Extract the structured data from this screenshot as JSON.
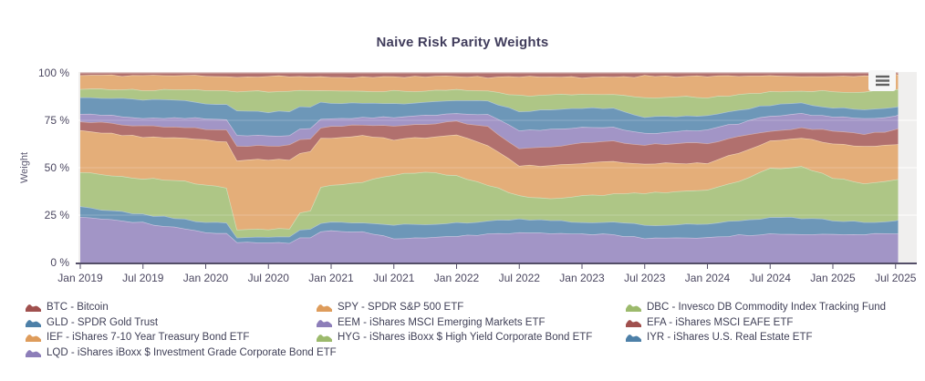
{
  "export_menu": {
    "icon": "hamburger-menu-icon"
  },
  "chart_data": {
    "type": "area",
    "stacked": true,
    "title": "Naive Risk Parity Weights",
    "xlabel": "",
    "ylabel": "Weight",
    "ylim": [
      0,
      100
    ],
    "grid": "horizontal",
    "legend_position": "bottom-left, three columns",
    "y_tick_values": [
      0,
      25,
      50,
      75,
      100
    ],
    "y_tick_labels": [
      "0 %",
      "25 %",
      "50 %",
      "75 %",
      "100 %"
    ],
    "x_tick_values": [
      2019.0,
      2019.5,
      2020.0,
      2020.5,
      2021.0,
      2021.5,
      2022.0,
      2022.5,
      2023.0,
      2023.5,
      2024.0,
      2024.5,
      2025.0,
      2025.5
    ],
    "x_tick_labels": [
      "Jan 2019",
      "Jul 2019",
      "Jan 2020",
      "Jul 2020",
      "Jan 2021",
      "Jul 2021",
      "Jan 2022",
      "Jul 2022",
      "Jan 2023",
      "Jul 2023",
      "Jan 2024",
      "Jul 2024",
      "Jan 2025",
      "Jul 2025"
    ],
    "x_unit": "decimal years (monthly weights)",
    "x": [
      2019.0,
      2019.25,
      2019.5,
      2019.75,
      2020.0,
      2020.17,
      2020.25,
      2020.5,
      2020.67,
      2020.75,
      2020.83,
      2020.92,
      2021.0,
      2021.25,
      2021.5,
      2021.75,
      2022.0,
      2022.25,
      2022.5,
      2022.75,
      2023.0,
      2023.25,
      2023.5,
      2023.75,
      2024.0,
      2024.25,
      2024.5,
      2024.75,
      2025.0,
      2025.25,
      2025.4,
      2025.52
    ],
    "series_note": "weights in percent, listed bottom-of-stack first; values estimated from plot",
    "series": [
      {
        "id": "LQD",
        "label": "LQD - iShares iBoxx $ Investment Grade Corporate Bond ETF",
        "color": "#8d7eb9",
        "values": [
          24.5,
          23.0,
          21.0,
          18.5,
          15.9,
          15.5,
          10.5,
          10.3,
          10.5,
          13.0,
          13.2,
          16.5,
          17.0,
          16.0,
          12.8,
          13.0,
          14.0,
          15.0,
          15.9,
          15.5,
          15.1,
          15.0,
          12.7,
          13.0,
          13.5,
          14.5,
          15.1,
          15.0,
          15.1,
          15.0,
          15.9,
          15.1
        ]
      },
      {
        "id": "IYR",
        "label": "IYR - iShares U.S. Real Estate ETF",
        "color": "#4d80a8",
        "values": [
          4.8,
          4.5,
          4.5,
          5.0,
          5.6,
          5.5,
          3.0,
          3.2,
          3.5,
          4.0,
          4.0,
          4.5,
          4.5,
          5.0,
          7.2,
          7.0,
          7.0,
          7.0,
          7.2,
          7.0,
          6.4,
          6.5,
          7.2,
          7.0,
          7.2,
          7.5,
          8.8,
          8.5,
          7.2,
          6.5,
          5.6,
          7.2
        ]
      },
      {
        "id": "HYG",
        "label": "HYG - iShares iBoxx $ High Yield Corporate Bond ETF",
        "color": "#9cba6c",
        "values": [
          18.7,
          18.5,
          19.0,
          20.0,
          19.5,
          18.0,
          4.0,
          4.0,
          4.0,
          9.0,
          9.8,
          19.0,
          19.0,
          21.5,
          26.5,
          28.0,
          25.0,
          19.0,
          12.0,
          11.5,
          13.6,
          14.5,
          16.8,
          17.5,
          17.6,
          21.0,
          25.6,
          27.5,
          22.4,
          20.5,
          21.6,
          21.6
        ]
      },
      {
        "id": "IEF",
        "label": "IEF - iShares 7-10 Year Treasury Bond ETF",
        "color": "#de9c5b",
        "values": [
          21.7,
          22.0,
          22.0,
          22.5,
          23.5,
          24.5,
          36.5,
          36.8,
          36.5,
          32.0,
          31.5,
          25.5,
          25.5,
          24.5,
          18.4,
          18.0,
          21.0,
          21.0,
          16.0,
          17.0,
          17.6,
          17.5,
          15.2,
          15.0,
          14.4,
          15.0,
          14.4,
          14.5,
          18.4,
          19.0,
          18.4,
          18.4
        ]
      },
      {
        "id": "EFA",
        "label": "EFA - iShares MSCI EAFE ETF",
        "color": "#a0504e",
        "values": [
          4.8,
          5.5,
          5.5,
          6.0,
          6.0,
          6.5,
          7.5,
          7.2,
          7.5,
          7.0,
          7.0,
          6.0,
          6.0,
          5.5,
          7.2,
          7.0,
          7.5,
          9.5,
          9.3,
          10.0,
          10.4,
          10.5,
          10.4,
          10.5,
          10.4,
          8.5,
          5.7,
          5.5,
          6.5,
          7.0,
          7.3,
          8.1
        ]
      },
      {
        "id": "EEM",
        "label": "EEM - iShares MSCI Emerging Markets ETF",
        "color": "#8d7eb9",
        "values": [
          3.9,
          4.0,
          4.5,
          4.5,
          5.5,
          5.5,
          5.5,
          5.3,
          5.5,
          5.5,
          5.5,
          4.5,
          4.3,
          4.0,
          4.8,
          4.5,
          4.5,
          6.5,
          9.2,
          9.5,
          8.1,
          7.5,
          5.7,
          6.0,
          7.3,
          7.0,
          8.0,
          7.5,
          7.2,
          8.0,
          8.0,
          7.2
        ]
      },
      {
        "id": "GLD",
        "label": "GLD - SPDR Gold Trust",
        "color": "#4d80a8",
        "values": [
          8.6,
          9.0,
          9.5,
          9.5,
          8.0,
          8.0,
          13.0,
          12.7,
          12.5,
          11.5,
          11.0,
          8.5,
          8.2,
          7.5,
          7.2,
          7.0,
          6.5,
          7.0,
          10.4,
          10.0,
          10.4,
          10.0,
          8.8,
          8.0,
          7.2,
          7.0,
          5.6,
          5.5,
          4.8,
          5.0,
          4.8,
          4.8
        ]
      },
      {
        "id": "DBC",
        "label": "DBC - Invesco DB Commodity Index Tracking Fund",
        "color": "#9cba6c",
        "values": [
          4.8,
          5.0,
          5.0,
          5.2,
          7.2,
          7.5,
          10.5,
          10.9,
          10.5,
          9.0,
          9.0,
          6.5,
          6.5,
          6.5,
          6.4,
          6.0,
          5.5,
          5.5,
          8.0,
          8.0,
          7.2,
          7.5,
          10.4,
          10.5,
          9.6,
          8.0,
          7.2,
          6.8,
          8.8,
          9.0,
          9.6,
          8.8
        ]
      },
      {
        "id": "SPY",
        "label": "SPY - SPDR S&P 500 ETF",
        "color": "#de9c5b",
        "values": [
          7.1,
          7.3,
          7.6,
          7.5,
          7.2,
          7.2,
          7.7,
          7.9,
          7.8,
          7.2,
          7.2,
          7.0,
          7.0,
          7.3,
          7.6,
          7.5,
          7.2,
          7.3,
          10.0,
          9.5,
          8.8,
          8.7,
          11.2,
          10.8,
          11.2,
          9.9,
          8.0,
          7.5,
          8.0,
          8.5,
          7.8,
          8.0
        ]
      },
      {
        "id": "BTC",
        "label": "BTC - Bitcoin",
        "color": "#a0504e",
        "values": [
          1.1,
          1.2,
          1.4,
          1.3,
          1.6,
          1.8,
          1.8,
          1.7,
          1.7,
          1.8,
          1.8,
          2.0,
          2.0,
          2.2,
          1.9,
          2.0,
          1.8,
          2.2,
          2.0,
          2.0,
          2.4,
          2.3,
          1.6,
          1.7,
          1.6,
          1.6,
          1.6,
          1.7,
          1.6,
          1.5,
          1.0,
          0.8
        ]
      }
    ],
    "legend": [
      {
        "id": "BTC",
        "label": "BTC - Bitcoin",
        "color": "#a0504e"
      },
      {
        "id": "SPY",
        "label": "SPY - SPDR S&P 500 ETF",
        "color": "#de9c5b"
      },
      {
        "id": "DBC",
        "label": "DBC - Invesco DB Commodity Index Tracking Fund",
        "color": "#9cba6c"
      },
      {
        "id": "GLD",
        "label": "GLD - SPDR Gold Trust",
        "color": "#4d80a8"
      },
      {
        "id": "EEM",
        "label": "EEM - iShares MSCI Emerging Markets ETF",
        "color": "#8d7eb9"
      },
      {
        "id": "EFA",
        "label": "EFA - iShares MSCI EAFE ETF",
        "color": "#a0504e"
      },
      {
        "id": "IEF",
        "label": "IEF - iShares 7-10 Year Treasury Bond ETF",
        "color": "#de9c5b"
      },
      {
        "id": "HYG",
        "label": "HYG - iShares iBoxx $ High Yield Corporate Bond ETF",
        "color": "#9cba6c"
      },
      {
        "id": "IYR",
        "label": "IYR - iShares U.S. Real Estate ETF",
        "color": "#4d80a8"
      },
      {
        "id": "LQD",
        "label": "LQD - iShares iBoxx $ Investment Grade Corporate Bond ETF",
        "color": "#8d7eb9"
      }
    ]
  }
}
